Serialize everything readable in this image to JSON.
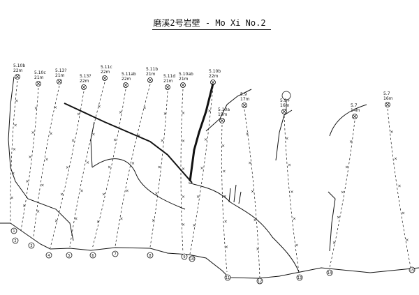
{
  "title": "磨溪2号岩壁 - Mo Xi No.2",
  "routes": [
    {
      "number": "1",
      "grade": "5.10b",
      "length": "22m"
    },
    {
      "number": "2",
      "grade": "5.10c",
      "length": "21m"
    },
    {
      "number": "3",
      "grade": "5.13?",
      "length": "21m"
    },
    {
      "number": "4",
      "grade": "5.13?",
      "length": "22m"
    },
    {
      "number": "5",
      "grade": "5.11c",
      "length": "22m"
    },
    {
      "number": "6",
      "grade": "5.11ab",
      "length": "22m"
    },
    {
      "number": "7",
      "grade": "5.11b",
      "length": "21m"
    },
    {
      "number": "8",
      "grade": "5.11d",
      "length": "21m"
    },
    {
      "number": "9",
      "grade": "5.10ab",
      "length": "21m"
    },
    {
      "number": "10",
      "grade": "5.10b",
      "length": "22m"
    },
    {
      "number": "11",
      "grade": "5.10a",
      "length": "15m"
    },
    {
      "number": "12",
      "grade": "5.9",
      "length": "17m"
    },
    {
      "number": "13",
      "grade": "5.9+",
      "length": "16m"
    },
    {
      "number": "14",
      "grade": "5.7",
      "length": "14m"
    },
    {
      "number": "15",
      "grade": "5.7",
      "length": "16m"
    }
  ],
  "icons": {
    "anchor": "anchor-ring-icon",
    "bolt": "bolt-x-icon",
    "tree": "tree-icon"
  }
}
